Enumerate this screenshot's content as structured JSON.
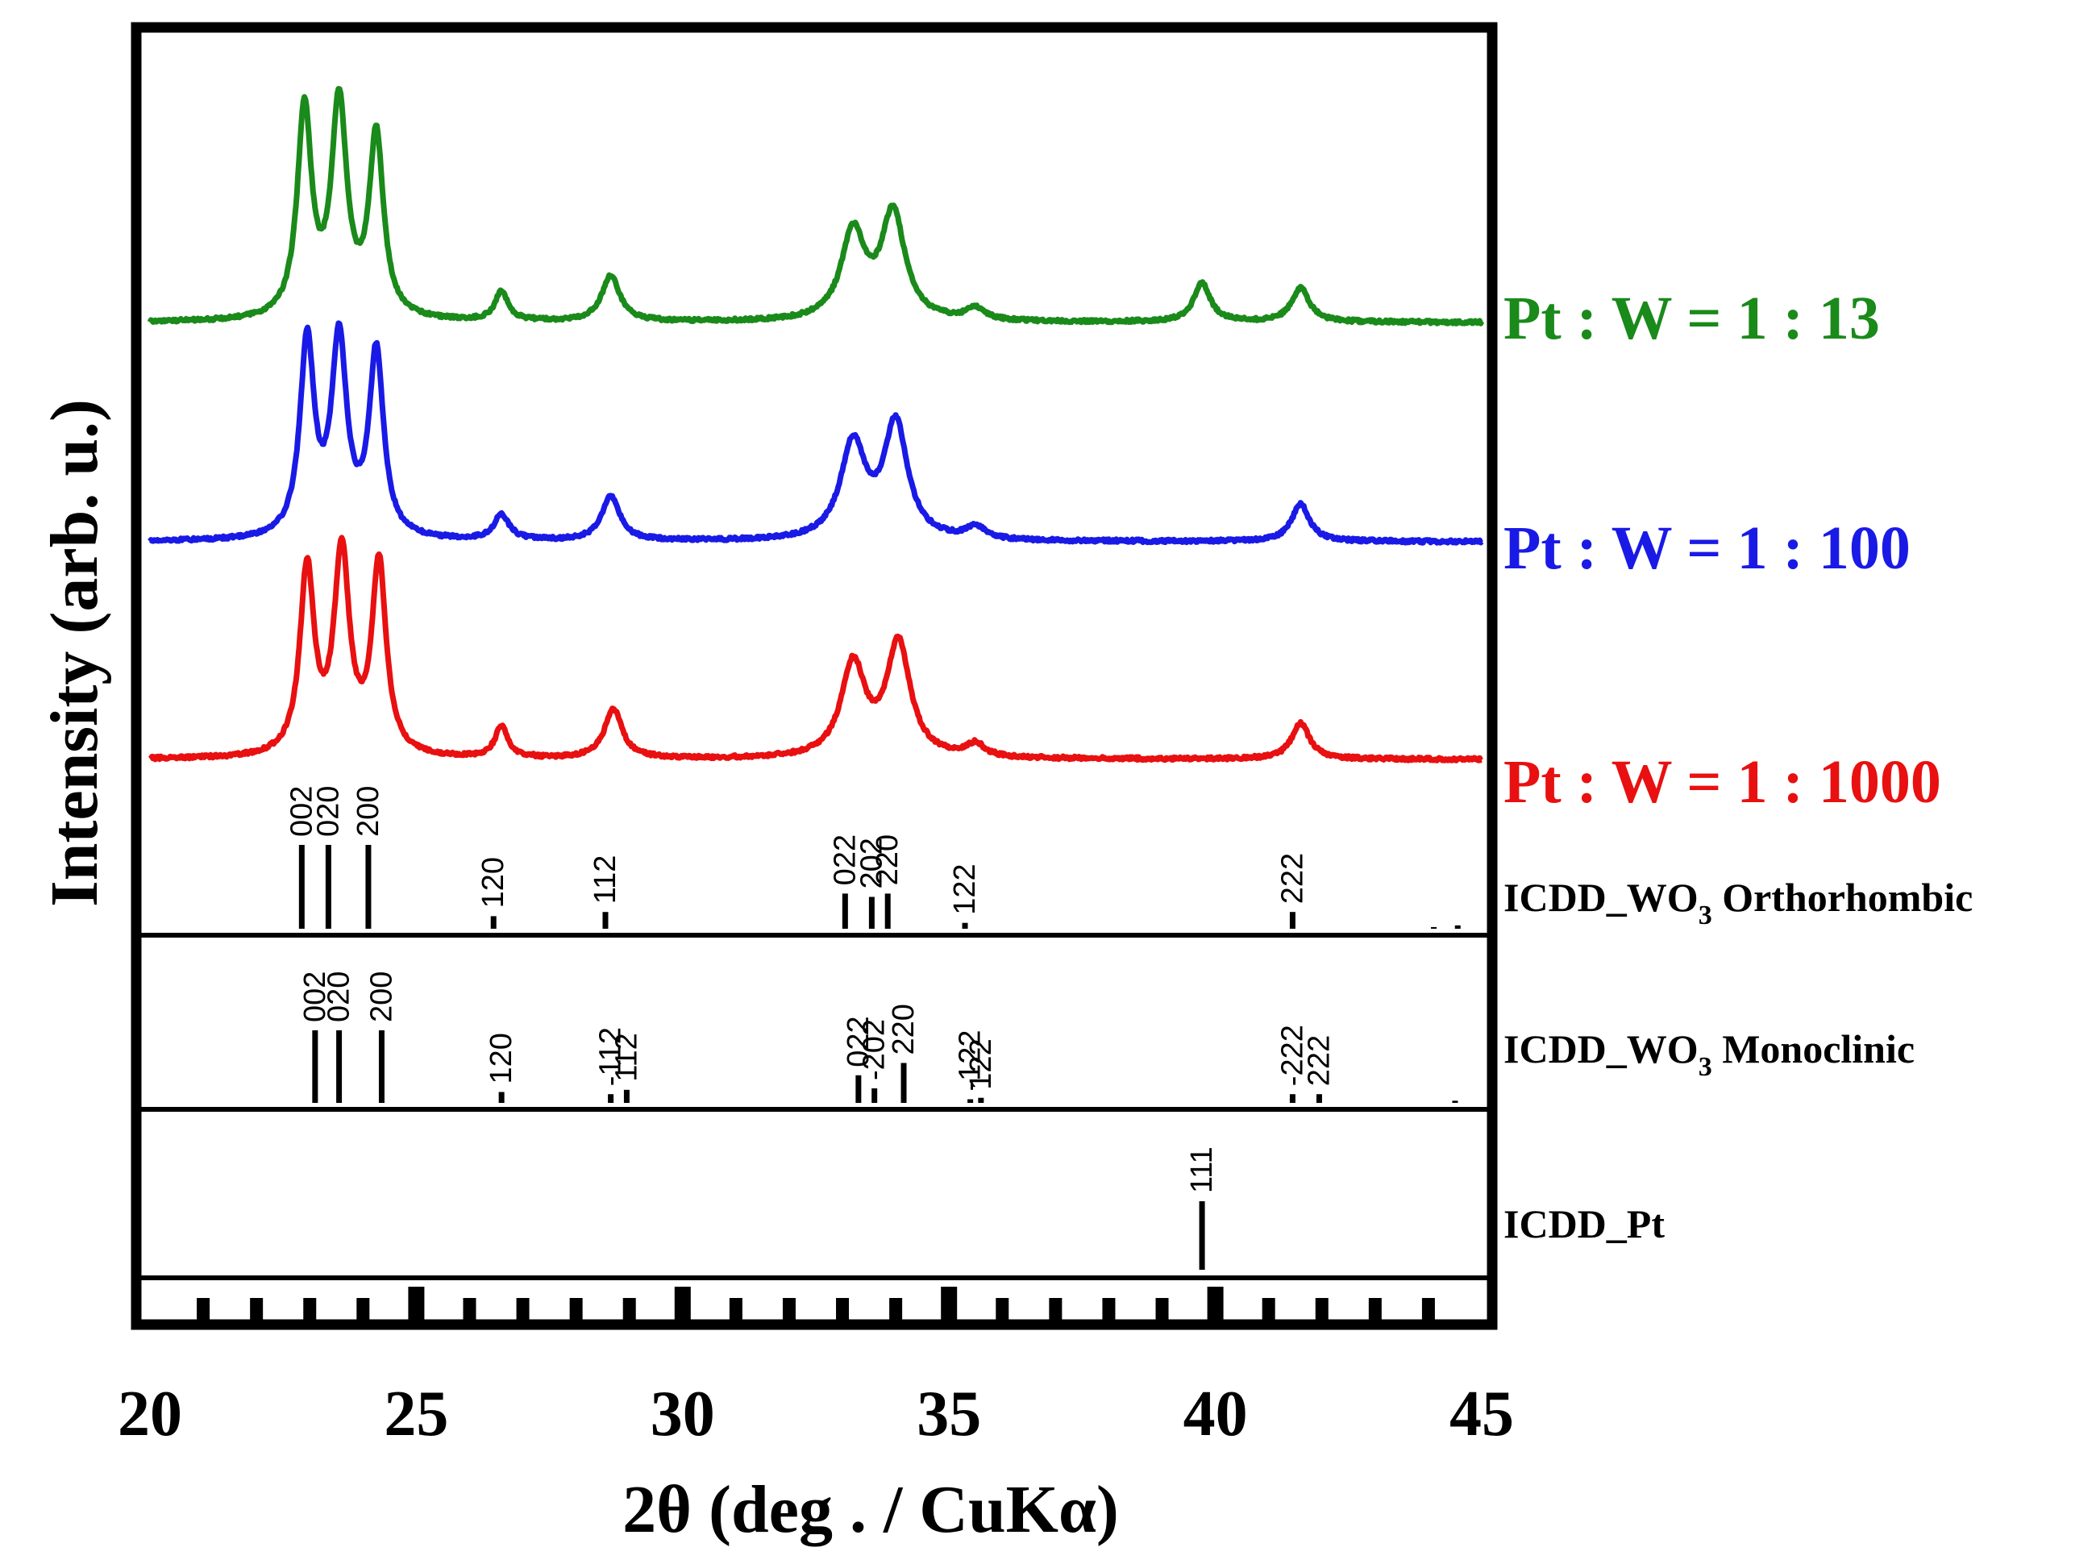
{
  "chart_data": {
    "type": "line",
    "xlabel": "2θ (deg . / CuKα)",
    "ylabel": "Intensity (arb. u.)",
    "xlim": [
      20,
      45
    ],
    "x_ticks": [
      20,
      25,
      30,
      35,
      40,
      45
    ],
    "x_minor_step": 1,
    "grid": false,
    "legend_position": "right of each trace",
    "series": [
      {
        "name": "Pt : W = 1 : 13",
        "label_main": "Pt : W = 1 : 13",
        "color": "#1a8a1a",
        "baseline": 0.0,
        "peaks": [
          {
            "x": 22.9,
            "h": 0.86,
            "w": 0.24
          },
          {
            "x": 23.55,
            "h": 0.88,
            "w": 0.26
          },
          {
            "x": 24.25,
            "h": 0.75,
            "w": 0.24
          },
          {
            "x": 26.6,
            "h": 0.12,
            "w": 0.22
          },
          {
            "x": 28.65,
            "h": 0.19,
            "w": 0.3
          },
          {
            "x": 33.2,
            "h": 0.36,
            "w": 0.4
          },
          {
            "x": 33.95,
            "h": 0.44,
            "w": 0.4
          },
          {
            "x": 35.5,
            "h": 0.05,
            "w": 0.3
          },
          {
            "x": 39.75,
            "h": 0.16,
            "w": 0.28
          },
          {
            "x": 41.6,
            "h": 0.14,
            "w": 0.3
          }
        ]
      },
      {
        "name": "Pt : W = 1 : 100",
        "label_main": "Pt : W = 1 : 100",
        "color": "#1a1ae6",
        "baseline": 0.0,
        "peaks": [
          {
            "x": 22.95,
            "h": 0.78,
            "w": 0.24
          },
          {
            "x": 23.55,
            "h": 0.78,
            "w": 0.26
          },
          {
            "x": 24.25,
            "h": 0.74,
            "w": 0.24
          },
          {
            "x": 26.6,
            "h": 0.1,
            "w": 0.26
          },
          {
            "x": 28.65,
            "h": 0.18,
            "w": 0.3
          },
          {
            "x": 33.2,
            "h": 0.38,
            "w": 0.42
          },
          {
            "x": 34.0,
            "h": 0.46,
            "w": 0.4
          },
          {
            "x": 35.5,
            "h": 0.05,
            "w": 0.3
          },
          {
            "x": 41.6,
            "h": 0.15,
            "w": 0.3
          }
        ]
      },
      {
        "name": "Pt : W = 1 : 1000",
        "label_main": "Pt : W = 1 : 1000",
        "color": "#e81010",
        "baseline": 0.0,
        "peaks": [
          {
            "x": 22.95,
            "h": 0.72,
            "w": 0.24
          },
          {
            "x": 23.6,
            "h": 0.78,
            "w": 0.26
          },
          {
            "x": 24.3,
            "h": 0.74,
            "w": 0.24
          },
          {
            "x": 26.6,
            "h": 0.12,
            "w": 0.22
          },
          {
            "x": 28.7,
            "h": 0.19,
            "w": 0.3
          },
          {
            "x": 33.2,
            "h": 0.36,
            "w": 0.4
          },
          {
            "x": 34.05,
            "h": 0.44,
            "w": 0.4
          },
          {
            "x": 35.5,
            "h": 0.05,
            "w": 0.3
          },
          {
            "x": 41.6,
            "h": 0.14,
            "w": 0.3
          }
        ]
      }
    ],
    "references": [
      {
        "name": "ICDD_WO3 Orthorhombic",
        "label_main": "ICDD_WO",
        "label_sub": "3",
        "label_rest": " Orthorhombic",
        "sticks": [
          {
            "x": 22.85,
            "h": 1.0,
            "label": "002"
          },
          {
            "x": 23.35,
            "h": 1.0,
            "label": "020"
          },
          {
            "x": 24.1,
            "h": 1.0,
            "label": "200"
          },
          {
            "x": 26.45,
            "h": 0.15,
            "label": "120"
          },
          {
            "x": 28.55,
            "h": 0.2,
            "label": "112"
          },
          {
            "x": 33.05,
            "h": 0.42,
            "label": "022"
          },
          {
            "x": 33.55,
            "h": 0.38,
            "label": "202"
          },
          {
            "x": 33.85,
            "h": 0.42,
            "label": "220"
          },
          {
            "x": 35.3,
            "h": 0.07,
            "label": "122"
          },
          {
            "x": 41.45,
            "h": 0.2,
            "label": "222"
          },
          {
            "x": 44.1,
            "h": 0.02,
            "label": ""
          },
          {
            "x": 44.55,
            "h": 0.04,
            "label": ""
          }
        ]
      },
      {
        "name": "ICDD_WO3 Monoclinic",
        "label_main": "ICDD_WO",
        "label_sub": "3",
        "label_rest": " Monoclinic",
        "sticks": [
          {
            "x": 23.1,
            "h": 1.0,
            "label": "002"
          },
          {
            "x": 23.55,
            "h": 1.0,
            "label": "020"
          },
          {
            "x": 24.35,
            "h": 1.0,
            "label": "200"
          },
          {
            "x": 26.6,
            "h": 0.15,
            "label": "120"
          },
          {
            "x": 28.65,
            "h": 0.12,
            "label": "-112"
          },
          {
            "x": 28.95,
            "h": 0.18,
            "label": "112"
          },
          {
            "x": 33.3,
            "h": 0.38,
            "label": "022"
          },
          {
            "x": 33.6,
            "h": 0.2,
            "label": "-202"
          },
          {
            "x": 34.15,
            "h": 0.55,
            "label": "220"
          },
          {
            "x": 35.4,
            "h": 0.05,
            "label": "-122"
          },
          {
            "x": 35.6,
            "h": 0.07,
            "label": "122"
          },
          {
            "x": 41.45,
            "h": 0.12,
            "label": "-222"
          },
          {
            "x": 41.95,
            "h": 0.12,
            "label": "222"
          },
          {
            "x": 44.5,
            "h": 0.03,
            "label": ""
          }
        ]
      },
      {
        "name": "ICDD_Pt",
        "label_main": "ICDD_Pt",
        "label_sub": "",
        "label_rest": "",
        "sticks": [
          {
            "x": 39.75,
            "h": 1.0,
            "label": "111"
          }
        ]
      }
    ]
  }
}
